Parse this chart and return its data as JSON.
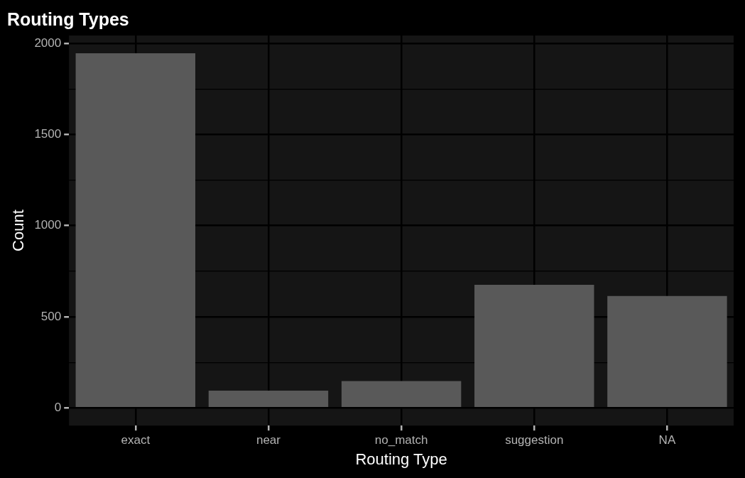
{
  "chart_data": {
    "type": "bar",
    "title": "Routing Types",
    "xlabel": "Routing Type",
    "ylabel": "Count",
    "categories": [
      "exact",
      "near",
      "no_match",
      "suggestion",
      "NA"
    ],
    "values": [
      1946,
      95,
      147,
      675,
      614
    ],
    "color": "#595959",
    "ylim": [
      -97,
      2043
    ],
    "yticks": [
      0,
      {
        "value": 250,
        "label": null
      },
      500,
      {
        "value": 750,
        "label": null
      },
      1000,
      {
        "value": 1250,
        "label": null
      },
      1500,
      {
        "value": 1750,
        "label": null
      },
      2000
    ],
    "grid": true,
    "legend": false
  }
}
